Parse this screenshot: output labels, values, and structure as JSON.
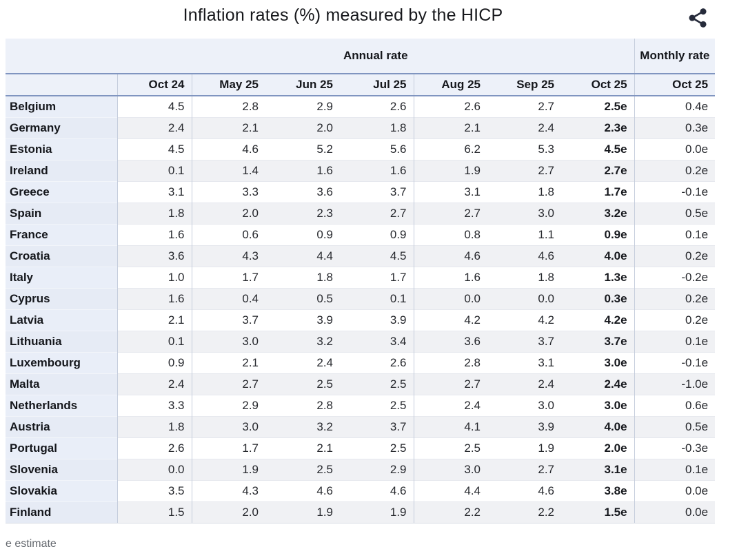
{
  "title": "Inflation rates (%) measured by the HICP",
  "share_button": {
    "icon": "share-icon"
  },
  "footnote": "e estimate",
  "colors": {
    "header_bg": "#edf1f9",
    "row_header_bg": "#e9eef8",
    "stripe_bg": "#f0f1f4",
    "accent_line": "#8095c0",
    "icon": "#262b3b",
    "footnote_text": "#65696f"
  },
  "chart_data": {
    "type": "table",
    "title": "Inflation rates (%) measured by the HICP",
    "column_groups": [
      {
        "label": "Annual rate",
        "span": 7
      },
      {
        "label": "Monthly rate",
        "span": 1
      }
    ],
    "annual_columns": [
      "Oct 24",
      "May 25",
      "Jun 25",
      "Jul 25",
      "Aug 25",
      "Sep 25",
      "Oct 25"
    ],
    "monthly_column": "Oct 25",
    "rows": [
      {
        "country": "Belgium",
        "annual": [
          "4.5",
          "2.8",
          "2.9",
          "2.6",
          "2.6",
          "2.7",
          "2.5e"
        ],
        "monthly": "0.4e"
      },
      {
        "country": "Germany",
        "annual": [
          "2.4",
          "2.1",
          "2.0",
          "1.8",
          "2.1",
          "2.4",
          "2.3e"
        ],
        "monthly": "0.3e"
      },
      {
        "country": "Estonia",
        "annual": [
          "4.5",
          "4.6",
          "5.2",
          "5.6",
          "6.2",
          "5.3",
          "4.5e"
        ],
        "monthly": "0.0e"
      },
      {
        "country": "Ireland",
        "annual": [
          "0.1",
          "1.4",
          "1.6",
          "1.6",
          "1.9",
          "2.7",
          "2.7e"
        ],
        "monthly": "0.2e"
      },
      {
        "country": "Greece",
        "annual": [
          "3.1",
          "3.3",
          "3.6",
          "3.7",
          "3.1",
          "1.8",
          "1.7e"
        ],
        "monthly": "-0.1e"
      },
      {
        "country": "Spain",
        "annual": [
          "1.8",
          "2.0",
          "2.3",
          "2.7",
          "2.7",
          "3.0",
          "3.2e"
        ],
        "monthly": "0.5e"
      },
      {
        "country": "France",
        "annual": [
          "1.6",
          "0.6",
          "0.9",
          "0.9",
          "0.8",
          "1.1",
          "0.9e"
        ],
        "monthly": "0.1e"
      },
      {
        "country": "Croatia",
        "annual": [
          "3.6",
          "4.3",
          "4.4",
          "4.5",
          "4.6",
          "4.6",
          "4.0e"
        ],
        "monthly": "0.2e"
      },
      {
        "country": "Italy",
        "annual": [
          "1.0",
          "1.7",
          "1.8",
          "1.7",
          "1.6",
          "1.8",
          "1.3e"
        ],
        "monthly": "-0.2e"
      },
      {
        "country": "Cyprus",
        "annual": [
          "1.6",
          "0.4",
          "0.5",
          "0.1",
          "0.0",
          "0.0",
          "0.3e"
        ],
        "monthly": "0.2e"
      },
      {
        "country": "Latvia",
        "annual": [
          "2.1",
          "3.7",
          "3.9",
          "3.9",
          "4.2",
          "4.2",
          "4.2e"
        ],
        "monthly": "0.2e"
      },
      {
        "country": "Lithuania",
        "annual": [
          "0.1",
          "3.0",
          "3.2",
          "3.4",
          "3.6",
          "3.7",
          "3.7e"
        ],
        "monthly": "0.1e"
      },
      {
        "country": "Luxembourg",
        "annual": [
          "0.9",
          "2.1",
          "2.4",
          "2.6",
          "2.8",
          "3.1",
          "3.0e"
        ],
        "monthly": "-0.1e"
      },
      {
        "country": "Malta",
        "annual": [
          "2.4",
          "2.7",
          "2.5",
          "2.5",
          "2.7",
          "2.4",
          "2.4e"
        ],
        "monthly": "-1.0e"
      },
      {
        "country": "Netherlands",
        "annual": [
          "3.3",
          "2.9",
          "2.8",
          "2.5",
          "2.4",
          "3.0",
          "3.0e"
        ],
        "monthly": "0.6e"
      },
      {
        "country": "Austria",
        "annual": [
          "1.8",
          "3.0",
          "3.2",
          "3.7",
          "4.1",
          "3.9",
          "4.0e"
        ],
        "monthly": "0.5e"
      },
      {
        "country": "Portugal",
        "annual": [
          "2.6",
          "1.7",
          "2.1",
          "2.5",
          "2.5",
          "1.9",
          "2.0e"
        ],
        "monthly": "-0.3e"
      },
      {
        "country": "Slovenia",
        "annual": [
          "0.0",
          "1.9",
          "2.5",
          "2.9",
          "3.0",
          "2.7",
          "3.1e"
        ],
        "monthly": "0.1e"
      },
      {
        "country": "Slovakia",
        "annual": [
          "3.5",
          "4.3",
          "4.6",
          "4.6",
          "4.4",
          "4.6",
          "3.8e"
        ],
        "monthly": "0.0e"
      },
      {
        "country": "Finland",
        "annual": [
          "1.5",
          "2.0",
          "1.9",
          "1.9",
          "2.2",
          "2.2",
          "1.5e"
        ],
        "monthly": "0.0e"
      }
    ],
    "footnote": "e estimate"
  }
}
